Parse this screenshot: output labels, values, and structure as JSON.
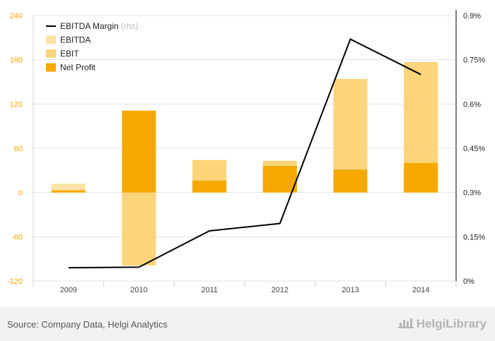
{
  "chart_data": {
    "type": "bar",
    "categories": [
      "2009",
      "2010",
      "2011",
      "2012",
      "2013",
      "2014"
    ],
    "series": [
      {
        "name": "EBITDA",
        "kind": "bar",
        "axis": "left",
        "values": [
          12,
          -99,
          44,
          43,
          154,
          177
        ],
        "color": "#fde4a6"
      },
      {
        "name": "EBIT",
        "kind": "bar",
        "axis": "left",
        "values": [
          3,
          -99,
          44,
          43,
          154,
          177
        ],
        "color": "#fcd57a"
      },
      {
        "name": "Net Profit",
        "kind": "bar",
        "axis": "left",
        "values": [
          3,
          111,
          16,
          36,
          31,
          40
        ],
        "color": "#f5a800"
      },
      {
        "name": "EBITDA Margin",
        "kind": "line",
        "axis": "right",
        "values": [
          0.045,
          0.047,
          0.17,
          0.195,
          0.82,
          0.7
        ],
        "color": "#000000"
      }
    ],
    "y_left": {
      "min": -120,
      "max": 240,
      "ticks": [
        "240",
        "180",
        "120",
        "60",
        "0",
        "-60",
        "-120"
      ]
    },
    "y_right": {
      "min": 0,
      "max": 0.9,
      "ticks": [
        "0.9%",
        "0.75%",
        "0.6%",
        "0.45%",
        "0.3%",
        "0.15%",
        "0%"
      ]
    },
    "legend": {
      "placement": "top-left",
      "rhs_suffix": "(rhs)"
    },
    "grid": true
  },
  "footer": {
    "source": "Source: Company Data, Helgi Analytics",
    "brand": "HelgiLibrary"
  }
}
